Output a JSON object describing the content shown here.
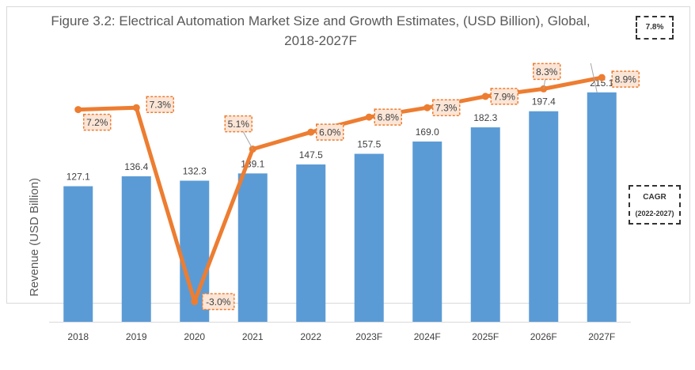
{
  "chart_data": {
    "type": "bar+line",
    "title": "Figure 3.2: Electrical Automation Market Size and Growth Estimates, (USD Billion), Global, 2018-2027F",
    "ylabel": "Revenue  (USD Billion)",
    "categories": [
      "2018",
      "2019",
      "2020",
      "2021",
      "2022",
      "2023F",
      "2024F",
      "2025F",
      "2026F",
      "2027F"
    ],
    "series": [
      {
        "type": "bar",
        "values": [
          127.1,
          136.4,
          132.3,
          139.1,
          147.5,
          157.5,
          169.0,
          182.3,
          197.4,
          215.1
        ],
        "labels": [
          "127.1",
          "136.4",
          "132.3",
          "139.1",
          "147.5",
          "157.5",
          "169.0",
          "182.3",
          "197.4",
          "215.1"
        ],
        "color": "#5b9bd5"
      },
      {
        "type": "line",
        "values": [
          7.2,
          7.3,
          -3.0,
          5.1,
          6.0,
          6.8,
          7.3,
          7.9,
          8.3,
          8.9
        ],
        "labels": [
          "7.2%",
          "7.3%",
          "-3.0%",
          "5.1%",
          "6.0%",
          "6.8%",
          "7.3%",
          "7.9%",
          "8.3%",
          "8.9%"
        ],
        "color": "#ed7d31"
      }
    ],
    "ylim": [
      0,
      235
    ],
    "y2lim": [
      -4.07,
      9.24
    ],
    "grid": false
  },
  "cagr": {
    "value": "7.8%",
    "label": "CAGR",
    "period": "(2022-2027)"
  }
}
